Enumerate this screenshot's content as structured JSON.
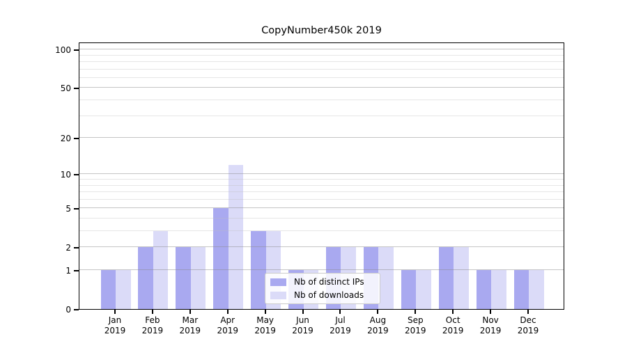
{
  "title": "CopyNumber450k 2019",
  "chart_data": {
    "type": "bar",
    "title": "CopyNumber450k 2019",
    "categories": [
      "Jan",
      "Feb",
      "Mar",
      "Apr",
      "May",
      "Jun",
      "Jul",
      "Aug",
      "Sep",
      "Oct",
      "Nov",
      "Dec"
    ],
    "year_label": "2019",
    "series": [
      {
        "name": "Nb of distinct IPs",
        "color": "#a9a9f0",
        "values": [
          1,
          2,
          2,
          5,
          3,
          1,
          2,
          2,
          1,
          2,
          1,
          1
        ]
      },
      {
        "name": "Nb of downloads",
        "color": "#dbdbf8",
        "values": [
          1,
          3,
          2,
          12,
          3,
          1,
          2,
          2,
          1,
          2,
          1,
          1
        ]
      }
    ],
    "y_scale": "log10(1+v)",
    "y_axis_ticks": [
      0,
      1,
      2,
      5,
      10,
      20,
      50,
      100
    ],
    "y_minor_gridlines": [
      3,
      4,
      6,
      7,
      8,
      9,
      30,
      40,
      60,
      70,
      80,
      90
    ],
    "ylim": [
      0,
      115
    ],
    "grid": true,
    "legend_position": "lower-center",
    "axis_color": "#000000",
    "major_grid_color": "#8c8c8c",
    "minor_grid_color": "#bebebe"
  }
}
